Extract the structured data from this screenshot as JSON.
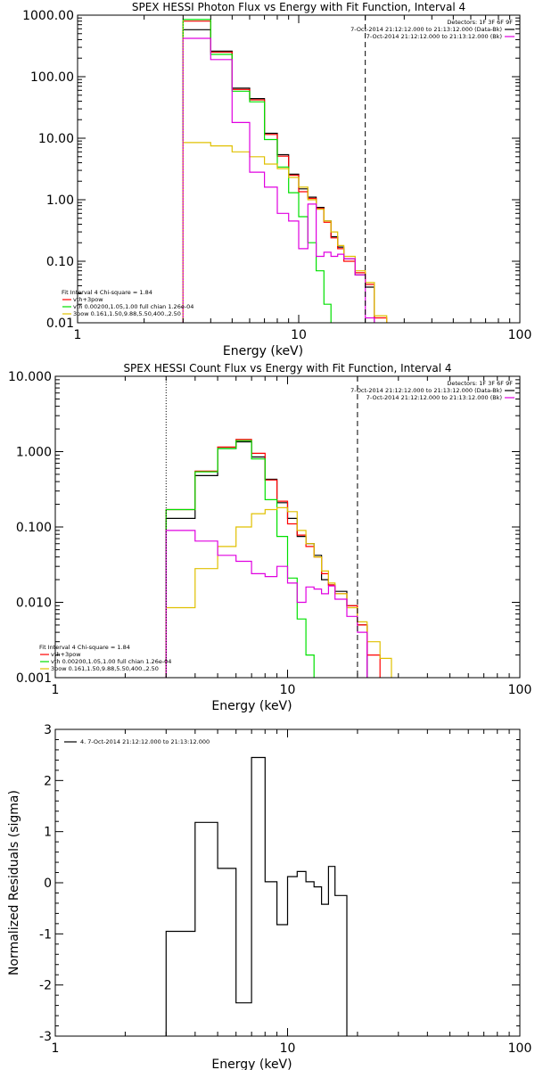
{
  "colors": {
    "background": "#ffffff",
    "axes": "#000000",
    "data": "#000000",
    "vth_3pow": "#ff0000",
    "vth": "#00e000",
    "3pow": "#e0c000",
    "bk": "#e000e0",
    "fit_start_line": "#e0c000"
  },
  "chart_data": [
    {
      "type": "line",
      "title": "SPEX HESSI Photon Flux vs Energy with Fit Function, Interval 4",
      "xlabel": "Energy (keV)",
      "ylabel": "",
      "xscale": "log",
      "yscale": "log",
      "xlim": [
        1,
        100
      ],
      "ylim": [
        0.01,
        1000
      ],
      "xticks": [
        1,
        10,
        100
      ],
      "xtick_labels": [
        "1",
        "10",
        "100"
      ],
      "yticks": [
        0.01,
        0.1,
        1,
        10,
        100,
        1000
      ],
      "ytick_labels": [
        "0.01",
        "0.10",
        "1.00",
        "10.00",
        "100.00",
        "1000.00"
      ],
      "vlines": [
        {
          "x": 3.0,
          "style": "dotted",
          "color_key": "fit_start_line"
        },
        {
          "x": 20.0,
          "style": "dashed"
        }
      ],
      "legend_top_right": [
        "Detectors: 1F 3F 6F 9F",
        "7-Oct-2014 21:12:12.000 to 21:13:12.000 (Data-Bk)",
        "7-Oct-2014 21:12:12.000 to 21:13:12.000 (Bk)"
      ],
      "legend_bottom_left": [
        "Fit Interval 4   Chi-square = 1.84",
        "vth+3pow",
        "vth 0.00200,1.05,1.00  full chian 1.26e-04",
        "3pow 0.161,1.50,9.88,5.50,400.,2.50"
      ],
      "edges": [
        3.0,
        4.0,
        5.0,
        6.0,
        7.0,
        8.0,
        9.0,
        10.0,
        11.0,
        12.0,
        13.0,
        14.0,
        15.0,
        16.0,
        18.0,
        20.0,
        22.0,
        25.0
      ],
      "series": [
        {
          "name": "7-Oct-2014 21:12:12.000 to 21:13:12.000 (Data-Bk)",
          "color_key": "data",
          "values": [
            580,
            260,
            65,
            44,
            12,
            5.4,
            2.6,
            1.5,
            1.1,
            0.75,
            0.45,
            0.25,
            0.17,
            0.11,
            0.06,
            0.038,
            null
          ]
        },
        {
          "name": "vth+3pow",
          "color_key": "vth_3pow",
          "values": [
            800,
            250,
            62,
            42,
            11.5,
            5.1,
            2.5,
            1.35,
            1.05,
            0.72,
            0.43,
            0.24,
            0.16,
            0.1,
            0.065,
            0.042,
            0.012
          ]
        },
        {
          "name": "vth",
          "color_key": "vth",
          "values": [
            850,
            230,
            58,
            39,
            9.5,
            3.4,
            1.3,
            0.53,
            0.2,
            0.07,
            0.02,
            null,
            null,
            null,
            null,
            null,
            null
          ]
        },
        {
          "name": "3pow",
          "color_key": "3pow",
          "values": [
            8.5,
            7.5,
            6.0,
            5.0,
            3.8,
            3.2,
            2.3,
            1.6,
            1.0,
            0.7,
            0.45,
            0.3,
            0.18,
            0.12,
            0.07,
            0.045,
            0.013
          ]
        },
        {
          "name": "7-Oct-2014 21:12:12.000 to 21:13:12.000 (Bk)",
          "color_key": "bk",
          "values": [
            420,
            190,
            18,
            2.8,
            1.6,
            0.6,
            0.45,
            0.16,
            0.85,
            0.12,
            0.14,
            0.12,
            0.13,
            0.11,
            0.06,
            0.012,
            null
          ]
        }
      ]
    },
    {
      "type": "line",
      "title": "SPEX HESSI Count Flux vs Energy with Fit Function, Interval 4",
      "xlabel": "Energy (keV)",
      "ylabel": "",
      "xscale": "log",
      "yscale": "log",
      "xlim": [
        1,
        100
      ],
      "ylim": [
        0.001,
        10
      ],
      "xticks": [
        1,
        10,
        100
      ],
      "xtick_labels": [
        "1",
        "10",
        "100"
      ],
      "yticks": [
        0.001,
        0.01,
        0.1,
        1,
        10
      ],
      "ytick_labels": [
        "0.001",
        "0.010",
        "0.100",
        "1.000",
        "10.000"
      ],
      "vlines": [
        {
          "x": 3.0,
          "style": "dotted"
        },
        {
          "x": 20.0,
          "style": "dashed"
        }
      ],
      "legend_top_right": [
        "Detectors: 1F 3F 6F 9F",
        "7-Oct-2014 21:12:12.000 to 21:13:12.000 (Data-Bk)",
        "7-Oct-2014 21:12:12.000 to 21:13:12.000 (Bk)"
      ],
      "legend_bottom_left": [
        "Fit Interval 4   Chi-square = 1.84",
        "vth+3pow",
        "vth 0.00200,1.05,1.00  full chian 1.26e-04",
        "3pow 0.161,1.50,9.88,5.50,400.,2.50"
      ],
      "edges": [
        3.0,
        4.0,
        5.0,
        6.0,
        7.0,
        8.0,
        9.0,
        10.0,
        11.0,
        12.0,
        13.0,
        14.0,
        15.0,
        16.0,
        18.0,
        20.0,
        22.0,
        25.0,
        28.0
      ],
      "series": [
        {
          "name": "7-Oct-2014 21:12:12.000 to 21:13:12.000 (Data-Bk)",
          "color_key": "data",
          "values": [
            0.13,
            0.48,
            1.1,
            1.35,
            0.85,
            0.43,
            0.21,
            0.13,
            0.075,
            0.06,
            0.042,
            0.02,
            0.017,
            0.014,
            0.009,
            0.005,
            null,
            null
          ]
        },
        {
          "name": "vth+3pow",
          "color_key": "vth_3pow",
          "values": [
            0.17,
            0.55,
            1.15,
            1.45,
            0.95,
            0.42,
            0.22,
            0.11,
            0.078,
            0.055,
            0.04,
            0.024,
            0.017,
            0.013,
            0.009,
            0.005,
            0.002,
            null
          ]
        },
        {
          "name": "vth",
          "color_key": "vth",
          "values": [
            0.17,
            0.54,
            1.1,
            1.4,
            0.8,
            0.23,
            0.075,
            0.021,
            0.006,
            0.002,
            null,
            null,
            null,
            null,
            null,
            null,
            null,
            null
          ]
        },
        {
          "name": "3pow",
          "color_key": "3pow",
          "values": [
            0.0085,
            0.028,
            0.055,
            0.1,
            0.15,
            0.17,
            0.18,
            0.16,
            0.09,
            0.06,
            0.04,
            0.026,
            0.018,
            0.013,
            0.0085,
            0.0055,
            0.003,
            0.0018
          ]
        },
        {
          "name": "7-Oct-2014 21:12:12.000 to 21:13:12.000 (Bk)",
          "color_key": "bk",
          "values": [
            0.09,
            0.065,
            0.042,
            0.035,
            0.024,
            0.022,
            0.03,
            0.018,
            0.01,
            0.016,
            0.015,
            0.013,
            0.0165,
            0.011,
            0.0065,
            0.004,
            null,
            null
          ]
        }
      ]
    },
    {
      "type": "line",
      "title": "",
      "xlabel": "Energy (keV)",
      "ylabel": "Normalized Residuals (sigma)",
      "xscale": "log",
      "yscale": "linear",
      "xlim": [
        1,
        100
      ],
      "ylim": [
        -3,
        3
      ],
      "xticks": [
        1,
        10,
        100
      ],
      "xtick_labels": [
        "1",
        "10",
        "100"
      ],
      "yticks": [
        -3,
        -2,
        -1,
        0,
        1,
        2,
        3
      ],
      "ytick_labels": [
        "-3",
        "-2",
        "-1",
        "0",
        "1",
        "2",
        "3"
      ],
      "legend_top_left": [
        "4.  7-Oct-2014 21:12:12.000 to 21:13:12.000"
      ],
      "edges": [
        3.0,
        4.0,
        5.0,
        6.0,
        7.0,
        8.0,
        9.0,
        10.0,
        11.0,
        12.0,
        13.0,
        14.0,
        15.0,
        16.0,
        18.0,
        20.0
      ],
      "series": [
        {
          "name": "4.  7-Oct-2014 21:12:12.000 to 21:13:12.000",
          "color_key": "data",
          "values": [
            -0.95,
            1.18,
            0.28,
            -2.35,
            2.45,
            0.02,
            -0.82,
            0.12,
            0.22,
            0.02,
            -0.08,
            -0.42,
            0.32,
            -0.25,
            null
          ]
        }
      ]
    }
  ]
}
